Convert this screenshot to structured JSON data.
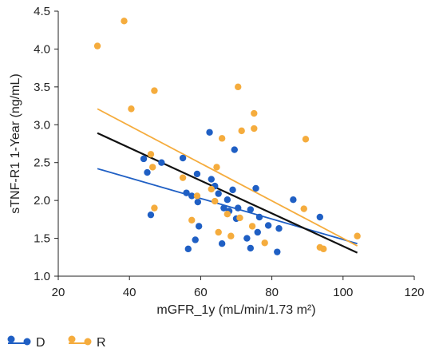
{
  "chart_data": {
    "type": "scatter",
    "xlabel": "mGFR_1y (mL/min/1.73 m²)",
    "ylabel": "sTNF-R1 1-Year (ng/mL)",
    "xlim": [
      20,
      120
    ],
    "ylim": [
      1.0,
      4.5
    ],
    "xticks": [
      "20",
      "40",
      "60",
      "80",
      "100",
      "120"
    ],
    "yticks": [
      "1.0",
      "1.5",
      "2.0",
      "2.5",
      "3.0",
      "3.5",
      "4.0",
      "4.5"
    ],
    "grid": false,
    "legend_position": "bottom-left",
    "series": [
      {
        "name": "D",
        "color": "#1f5fc4",
        "points": [
          [
            44,
            2.55
          ],
          [
            45,
            2.37
          ],
          [
            46,
            1.81
          ],
          [
            49,
            2.5
          ],
          [
            55,
            2.56
          ],
          [
            56,
            2.1
          ],
          [
            56.5,
            1.36
          ],
          [
            57.5,
            2.06
          ],
          [
            58.5,
            1.48
          ],
          [
            59,
            2.35
          ],
          [
            59.2,
            1.98
          ],
          [
            59.5,
            1.66
          ],
          [
            62.5,
            2.9
          ],
          [
            63,
            2.28
          ],
          [
            64,
            2.19
          ],
          [
            65,
            2.09
          ],
          [
            66,
            1.43
          ],
          [
            66.5,
            1.9
          ],
          [
            67.5,
            2.01
          ],
          [
            68,
            1.86
          ],
          [
            69,
            2.14
          ],
          [
            69.5,
            2.67
          ],
          [
            70,
            1.76
          ],
          [
            70.5,
            1.9
          ],
          [
            73,
            1.5
          ],
          [
            74,
            1.88
          ],
          [
            74,
            1.37
          ],
          [
            75.5,
            2.16
          ],
          [
            76,
            1.58
          ],
          [
            76.5,
            1.78
          ],
          [
            79,
            1.67
          ],
          [
            81.5,
            1.32
          ],
          [
            82,
            1.63
          ],
          [
            86,
            2.01
          ],
          [
            93.5,
            1.78
          ]
        ],
        "trend": [
          [
            31,
            2.42
          ],
          [
            104,
            1.43
          ]
        ]
      },
      {
        "name": "R",
        "color": "#f5ac3d",
        "points": [
          [
            31,
            4.04
          ],
          [
            38.5,
            4.37
          ],
          [
            40.5,
            3.21
          ],
          [
            46,
            2.61
          ],
          [
            46.5,
            2.44
          ],
          [
            47,
            3.45
          ],
          [
            47,
            1.9
          ],
          [
            55,
            2.3
          ],
          [
            57.5,
            1.74
          ],
          [
            59,
            2.06
          ],
          [
            63,
            2.15
          ],
          [
            64,
            1.99
          ],
          [
            64.5,
            2.44
          ],
          [
            65,
            1.58
          ],
          [
            66,
            2.82
          ],
          [
            67.5,
            1.82
          ],
          [
            68.5,
            1.53
          ],
          [
            70.5,
            3.5
          ],
          [
            71,
            1.77
          ],
          [
            71.5,
            2.92
          ],
          [
            74.5,
            1.66
          ],
          [
            75,
            2.95
          ],
          [
            75,
            3.15
          ],
          [
            78,
            1.44
          ],
          [
            89,
            1.89
          ],
          [
            89.5,
            2.81
          ],
          [
            93.5,
            1.38
          ],
          [
            94.5,
            1.36
          ],
          [
            104,
            1.53
          ]
        ],
        "trend": [
          [
            31,
            3.21
          ],
          [
            104,
            1.4
          ]
        ]
      }
    ],
    "overall_trend": {
      "color": "#111111",
      "line": [
        [
          31,
          2.89
        ],
        [
          104,
          1.31
        ]
      ]
    }
  }
}
